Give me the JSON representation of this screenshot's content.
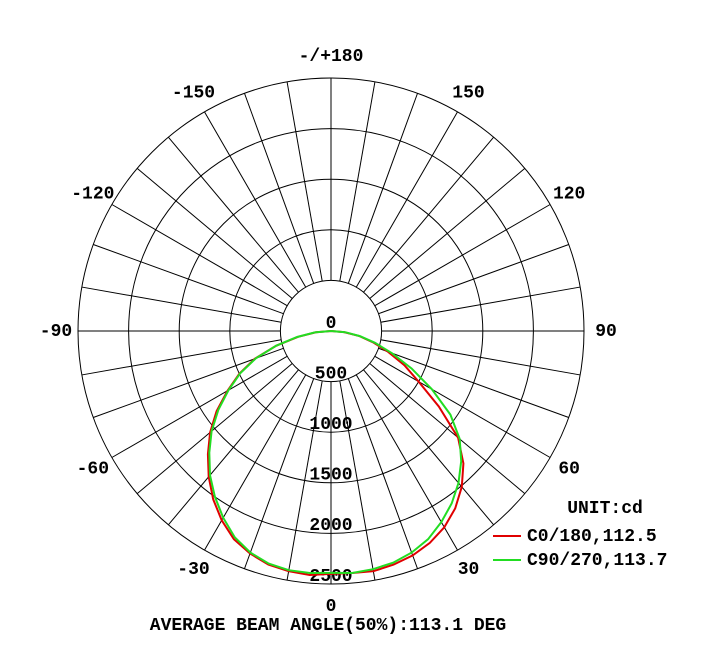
{
  "chart_data": {
    "type": "polar",
    "x": [
      -90,
      -85,
      -80,
      -75,
      -70,
      -65,
      -60,
      -55,
      -50,
      -45,
      -40,
      -35,
      -30,
      -25,
      -20,
      -15,
      -10,
      -5,
      0,
      5,
      10,
      15,
      20,
      25,
      30,
      35,
      40,
      45,
      50,
      55,
      60,
      65,
      70,
      75,
      80,
      85,
      90
    ],
    "series": [
      {
        "name": "C0/180,112.5",
        "color": "#e00000",
        "values": [
          0,
          150,
          330,
          560,
          800,
          1000,
          1180,
          1380,
          1560,
          1720,
          1880,
          2030,
          2160,
          2270,
          2340,
          2390,
          2410,
          2420,
          2400,
          2400,
          2410,
          2390,
          2360,
          2310,
          2240,
          2140,
          2010,
          1850,
          1640,
          1300,
          1000,
          800,
          600,
          430,
          280,
          130,
          0
        ]
      },
      {
        "name": "C90/270,113.7",
        "color": "#22dd22",
        "values": [
          0,
          160,
          340,
          560,
          790,
          990,
          1170,
          1360,
          1540,
          1700,
          1860,
          2000,
          2130,
          2250,
          2330,
          2380,
          2400,
          2400,
          2390,
          2400,
          2390,
          2370,
          2330,
          2270,
          2180,
          2080,
          1960,
          1820,
          1660,
          1440,
          1150,
          880,
          640,
          450,
          290,
          140,
          0
        ]
      }
    ],
    "rlim": [
      0,
      2500
    ],
    "rticks": [
      0,
      500,
      1000,
      1500,
      2000,
      2500
    ],
    "angle_ticks": [
      {
        "value": 180,
        "label": "-/+180"
      },
      -150,
      -120,
      -90,
      -60,
      -30,
      0,
      30,
      60,
      90,
      120,
      150
    ],
    "unit_label": "UNIT:cd",
    "footer": "AVERAGE BEAM ANGLE(50%):113.1 DEG"
  }
}
